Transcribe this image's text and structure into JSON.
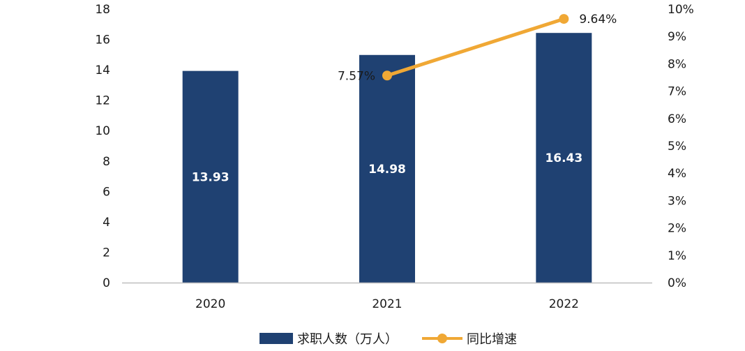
{
  "chart_data": {
    "type": "bar",
    "categories": [
      "2020",
      "2021",
      "2022"
    ],
    "series": [
      {
        "name": "求职人数（万人）",
        "type": "bar",
        "axis": "left",
        "values": [
          13.93,
          14.98,
          16.43
        ],
        "labels": [
          "13.93",
          "14.98",
          "16.43"
        ]
      },
      {
        "name": "同比增速",
        "type": "line",
        "axis": "right",
        "values": [
          null,
          7.57,
          9.64
        ],
        "labels": [
          "",
          "7.57%",
          "9.64%"
        ]
      }
    ],
    "y_left": {
      "min": 0,
      "max": 18,
      "ticks": [
        "0",
        "2",
        "4",
        "6",
        "8",
        "10",
        "12",
        "14",
        "16",
        "18"
      ]
    },
    "y_right": {
      "min": 0,
      "max": 10,
      "ticks": [
        "0%",
        "1%",
        "2%",
        "3%",
        "4%",
        "5%",
        "6%",
        "7%",
        "8%",
        "9%",
        "10%"
      ]
    },
    "title": "",
    "xlabel": "",
    "ylabel": "",
    "grid": false,
    "legend": {
      "position": "bottom",
      "entries": [
        "求职人数（万人）",
        "同比增速"
      ]
    },
    "colors": {
      "bar": "#1f4172",
      "line": "#f0a835",
      "axis": "#bfbfbf"
    }
  }
}
